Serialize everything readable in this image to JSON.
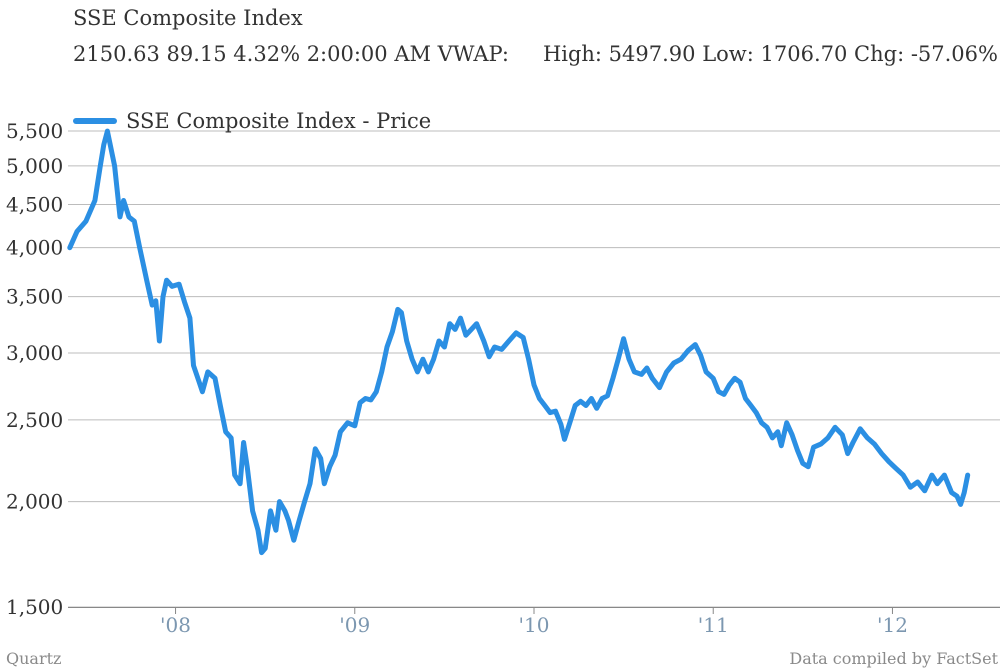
{
  "header": {
    "title": "SSE Composite Index",
    "stats_left": "2150.63 89.15 4.32% 2:00:00 AM VWAP:",
    "stats_right": "High: 5497.90 Low: 1706.70 Chg: -57.06%"
  },
  "footer": {
    "source_left": "Quartz",
    "source_right": "Data compiled by FactSet"
  },
  "chart_data": {
    "type": "line",
    "y_scale": "log",
    "ylim": [
      1500,
      5500
    ],
    "y_ticks": [
      1500,
      2000,
      2500,
      3000,
      3500,
      4000,
      4500,
      5000,
      5500
    ],
    "y_tick_labels": [
      "1,500",
      "2,000",
      "2,500",
      "3,000",
      "3,500",
      "4,000",
      "4,500",
      "5,000",
      "5,500"
    ],
    "xlim": [
      2007.4,
      2012.6
    ],
    "x_ticks": [
      2008,
      2009,
      2010,
      2011,
      2012
    ],
    "x_tick_labels": [
      "'08",
      "'09",
      "'10",
      "'11",
      "'12"
    ],
    "grid": "horizontal",
    "legend_placement": "top-left",
    "series": [
      {
        "name": "SSE Composite Index - Price",
        "color": "#2b8fe3",
        "points": [
          [
            2007.41,
            4000
          ],
          [
            2007.45,
            4180
          ],
          [
            2007.5,
            4300
          ],
          [
            2007.55,
            4550
          ],
          [
            2007.58,
            5000
          ],
          [
            2007.6,
            5300
          ],
          [
            2007.62,
            5498
          ],
          [
            2007.66,
            5000
          ],
          [
            2007.69,
            4350
          ],
          [
            2007.71,
            4550
          ],
          [
            2007.74,
            4350
          ],
          [
            2007.77,
            4300
          ],
          [
            2007.8,
            4000
          ],
          [
            2007.84,
            3650
          ],
          [
            2007.87,
            3420
          ],
          [
            2007.89,
            3460
          ],
          [
            2007.91,
            3100
          ],
          [
            2007.93,
            3500
          ],
          [
            2007.95,
            3660
          ],
          [
            2007.98,
            3600
          ],
          [
            2008.02,
            3620
          ],
          [
            2008.05,
            3450
          ],
          [
            2008.08,
            3300
          ],
          [
            2008.1,
            2900
          ],
          [
            2008.13,
            2780
          ],
          [
            2008.15,
            2700
          ],
          [
            2008.18,
            2850
          ],
          [
            2008.22,
            2800
          ],
          [
            2008.25,
            2600
          ],
          [
            2008.28,
            2420
          ],
          [
            2008.31,
            2380
          ],
          [
            2008.33,
            2150
          ],
          [
            2008.36,
            2100
          ],
          [
            2008.38,
            2350
          ],
          [
            2008.4,
            2200
          ],
          [
            2008.43,
            1950
          ],
          [
            2008.46,
            1850
          ],
          [
            2008.48,
            1740
          ],
          [
            2008.5,
            1760
          ],
          [
            2008.53,
            1950
          ],
          [
            2008.56,
            1850
          ],
          [
            2008.58,
            2000
          ],
          [
            2008.61,
            1950
          ],
          [
            2008.63,
            1900
          ],
          [
            2008.66,
            1800
          ],
          [
            2008.69,
            1900
          ],
          [
            2008.72,
            2000
          ],
          [
            2008.75,
            2100
          ],
          [
            2008.78,
            2310
          ],
          [
            2008.81,
            2250
          ],
          [
            2008.83,
            2100
          ],
          [
            2008.86,
            2200
          ],
          [
            2008.89,
            2270
          ],
          [
            2008.92,
            2420
          ],
          [
            2008.96,
            2480
          ],
          [
            2009.0,
            2460
          ],
          [
            2009.03,
            2620
          ],
          [
            2009.06,
            2650
          ],
          [
            2009.09,
            2640
          ],
          [
            2009.12,
            2700
          ],
          [
            2009.15,
            2850
          ],
          [
            2009.18,
            3050
          ],
          [
            2009.21,
            3180
          ],
          [
            2009.24,
            3380
          ],
          [
            2009.26,
            3350
          ],
          [
            2009.29,
            3100
          ],
          [
            2009.32,
            2950
          ],
          [
            2009.35,
            2850
          ],
          [
            2009.38,
            2950
          ],
          [
            2009.41,
            2850
          ],
          [
            2009.44,
            2950
          ],
          [
            2009.47,
            3100
          ],
          [
            2009.5,
            3050
          ],
          [
            2009.53,
            3250
          ],
          [
            2009.56,
            3200
          ],
          [
            2009.59,
            3300
          ],
          [
            2009.62,
            3150
          ],
          [
            2009.65,
            3200
          ],
          [
            2009.68,
            3250
          ],
          [
            2009.72,
            3100
          ],
          [
            2009.75,
            2970
          ],
          [
            2009.78,
            3050
          ],
          [
            2009.82,
            3030
          ],
          [
            2009.86,
            3100
          ],
          [
            2009.9,
            3170
          ],
          [
            2009.94,
            3130
          ],
          [
            2009.97,
            2950
          ],
          [
            2010.0,
            2750
          ],
          [
            2010.03,
            2650
          ],
          [
            2010.06,
            2600
          ],
          [
            2010.09,
            2550
          ],
          [
            2010.12,
            2560
          ],
          [
            2010.15,
            2470
          ],
          [
            2010.17,
            2370
          ],
          [
            2010.2,
            2480
          ],
          [
            2010.23,
            2600
          ],
          [
            2010.26,
            2630
          ],
          [
            2010.29,
            2600
          ],
          [
            2010.32,
            2650
          ],
          [
            2010.35,
            2580
          ],
          [
            2010.38,
            2650
          ],
          [
            2010.41,
            2670
          ],
          [
            2010.44,
            2800
          ],
          [
            2010.47,
            2950
          ],
          [
            2010.5,
            3120
          ],
          [
            2010.53,
            2950
          ],
          [
            2010.56,
            2850
          ],
          [
            2010.6,
            2830
          ],
          [
            2010.63,
            2880
          ],
          [
            2010.66,
            2800
          ],
          [
            2010.7,
            2730
          ],
          [
            2010.74,
            2850
          ],
          [
            2010.78,
            2920
          ],
          [
            2010.82,
            2950
          ],
          [
            2010.86,
            3020
          ],
          [
            2010.9,
            3070
          ],
          [
            2010.93,
            2980
          ],
          [
            2010.96,
            2850
          ],
          [
            2011.0,
            2800
          ],
          [
            2011.03,
            2700
          ],
          [
            2011.06,
            2680
          ],
          [
            2011.09,
            2750
          ],
          [
            2011.12,
            2800
          ],
          [
            2011.15,
            2770
          ],
          [
            2011.18,
            2650
          ],
          [
            2011.21,
            2600
          ],
          [
            2011.24,
            2550
          ],
          [
            2011.27,
            2480
          ],
          [
            2011.3,
            2450
          ],
          [
            2011.33,
            2380
          ],
          [
            2011.36,
            2420
          ],
          [
            2011.38,
            2330
          ],
          [
            2011.41,
            2480
          ],
          [
            2011.44,
            2400
          ],
          [
            2011.47,
            2300
          ],
          [
            2011.5,
            2220
          ],
          [
            2011.53,
            2200
          ],
          [
            2011.56,
            2320
          ],
          [
            2011.6,
            2340
          ],
          [
            2011.64,
            2380
          ],
          [
            2011.68,
            2450
          ],
          [
            2011.72,
            2400
          ],
          [
            2011.75,
            2280
          ],
          [
            2011.78,
            2350
          ],
          [
            2011.82,
            2440
          ],
          [
            2011.86,
            2380
          ],
          [
            2011.9,
            2340
          ],
          [
            2011.94,
            2280
          ],
          [
            2011.98,
            2230
          ],
          [
            2012.02,
            2190
          ],
          [
            2012.06,
            2150
          ],
          [
            2012.1,
            2080
          ],
          [
            2012.14,
            2110
          ],
          [
            2012.18,
            2060
          ],
          [
            2012.22,
            2150
          ],
          [
            2012.25,
            2100
          ],
          [
            2012.29,
            2150
          ],
          [
            2012.33,
            2050
          ],
          [
            2012.36,
            2030
          ],
          [
            2012.38,
            1985
          ],
          [
            2012.4,
            2050
          ],
          [
            2012.42,
            2150
          ]
        ]
      }
    ]
  }
}
